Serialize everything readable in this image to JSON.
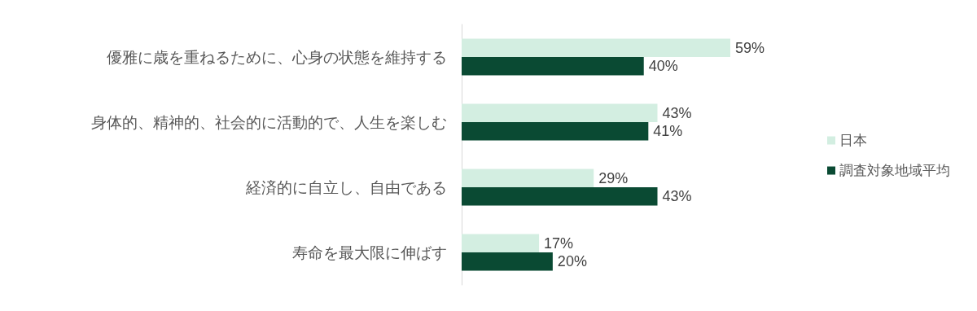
{
  "chart_data": {
    "type": "bar",
    "orientation": "horizontal",
    "categories": [
      "優雅に歳を重ねるために、心身の状態を維持する",
      "身体的、精神的、社会的に活動的で、人生を楽しむ",
      "経済的に自立し、自由である",
      "寿命を最大限に伸ばす"
    ],
    "series": [
      {
        "name": "日本",
        "color": "#d3eee1",
        "values": [
          59,
          43,
          29,
          17
        ],
        "value_labels": [
          "59%",
          "43%",
          "29%",
          "17%"
        ]
      },
      {
        "name": "調査対象地域平均",
        "color": "#0a4a33",
        "values": [
          40,
          41,
          43,
          20
        ],
        "value_labels": [
          "40%",
          "41%",
          "43%",
          "20%"
        ]
      }
    ],
    "legend": "right",
    "grid": false
  }
}
